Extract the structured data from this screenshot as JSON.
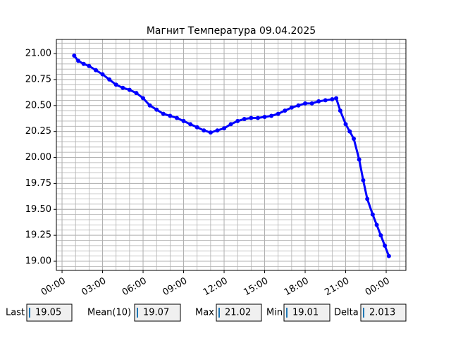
{
  "chart_data": {
    "type": "line",
    "title": "Магнит Температура 09.04.2025",
    "x": [
      0.9,
      1.2,
      1.6,
      2.0,
      2.5,
      3.0,
      3.5,
      4.0,
      4.5,
      5.0,
      5.5,
      6.0,
      6.5,
      7.0,
      7.5,
      8.0,
      8.5,
      9.0,
      9.5,
      10.0,
      10.5,
      11.0,
      11.5,
      12.0,
      12.5,
      13.0,
      13.5,
      14.0,
      14.5,
      15.0,
      15.5,
      16.0,
      16.5,
      17.0,
      17.5,
      18.0,
      18.5,
      19.0,
      19.5,
      20.0,
      20.3,
      20.6,
      21.0,
      21.3,
      21.6,
      22.0,
      22.3,
      22.6,
      23.0,
      23.3,
      23.6,
      23.9,
      24.2
    ],
    "series": [
      {
        "color": "#0000ff",
        "values": [
          20.98,
          20.93,
          20.9,
          20.88,
          20.84,
          20.8,
          20.75,
          20.7,
          20.67,
          20.65,
          20.62,
          20.57,
          20.5,
          20.46,
          20.42,
          20.4,
          20.38,
          20.35,
          20.32,
          20.29,
          20.26,
          20.24,
          20.26,
          20.28,
          20.32,
          20.35,
          20.37,
          20.38,
          20.38,
          20.39,
          20.4,
          20.42,
          20.45,
          20.48,
          20.5,
          20.52,
          20.52,
          20.54,
          20.55,
          20.56,
          20.57,
          20.45,
          20.32,
          20.25,
          20.18,
          19.98,
          19.78,
          19.6,
          19.45,
          19.35,
          19.25,
          19.15,
          19.05
        ]
      }
    ],
    "xlim": [
      -0.42,
      25.46
    ],
    "ylim": [
      18.912,
      21.136
    ],
    "xticks": [
      {
        "value": 0,
        "label": "00:00"
      },
      {
        "value": 3,
        "label": "03:00"
      },
      {
        "value": 6,
        "label": "06:00"
      },
      {
        "value": 9,
        "label": "09:00"
      },
      {
        "value": 12,
        "label": "12:00"
      },
      {
        "value": 15,
        "label": "15:00"
      },
      {
        "value": 18,
        "label": "18:00"
      },
      {
        "value": 21,
        "label": "21:00"
      },
      {
        "value": 24,
        "label": "00:00"
      }
    ],
    "yticks": [
      {
        "value": 19,
        "label": "19.00"
      },
      {
        "value": 19.25,
        "label": "19.25"
      },
      {
        "value": 19.5,
        "label": "19.50"
      },
      {
        "value": 19.75,
        "label": "19.75"
      },
      {
        "value": 20,
        "label": "20.00"
      },
      {
        "value": 20.25,
        "label": "20.25"
      },
      {
        "value": 20.5,
        "label": "20.50"
      },
      {
        "value": 20.75,
        "label": "20.75"
      },
      {
        "value": 21,
        "label": "21.00"
      }
    ],
    "grid": true,
    "minor_x_step": 1,
    "minor_y_step": 0.05
  },
  "controls": [
    {
      "label": "Last",
      "value": "19.05"
    },
    {
      "label": "Mean(10)",
      "value": "19.07"
    },
    {
      "label": "Max",
      "value": "21.02"
    },
    {
      "label": "Min",
      "value": "19.01"
    },
    {
      "label": "Delta",
      "value": "2.013"
    }
  ]
}
